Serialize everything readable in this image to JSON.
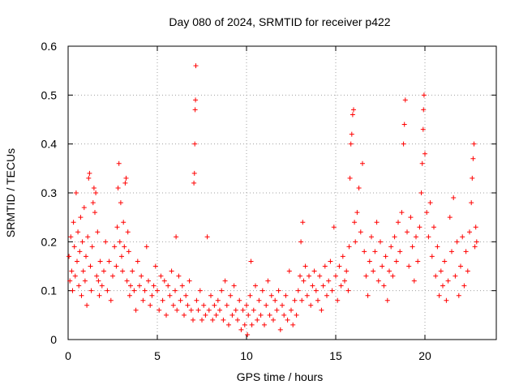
{
  "chart_data": {
    "type": "scatter",
    "title": "Day 080 of 2024, SRMTID for receiver p422",
    "xlabel": "GPS time / hours",
    "ylabel": "SRMTID / TECUs",
    "xlim": [
      0,
      24
    ],
    "ylim": [
      0,
      0.6
    ],
    "x_ticks": [
      0,
      5,
      10,
      15,
      20
    ],
    "x_tick_labels": [
      "0",
      "5",
      "10",
      "15",
      "20"
    ],
    "y_ticks": [
      0,
      0.1,
      0.2,
      0.3,
      0.4,
      0.5,
      0.6
    ],
    "y_tick_labels": [
      "0",
      "0.1",
      "0.2",
      "0.3",
      "0.4",
      "0.5",
      "0.6"
    ],
    "grid": true,
    "marker": "plus",
    "color": "#ff0000",
    "series": [
      {
        "name": "SRMTID",
        "points": [
          [
            0.05,
            0.17
          ],
          [
            0.1,
            0.12
          ],
          [
            0.15,
            0.21
          ],
          [
            0.2,
            0.14
          ],
          [
            0.25,
            0.1
          ],
          [
            0.3,
            0.24
          ],
          [
            0.35,
            0.19
          ],
          [
            0.4,
            0.13
          ],
          [
            0.45,
            0.3
          ],
          [
            0.5,
            0.16
          ],
          [
            0.55,
            0.22
          ],
          [
            0.6,
            0.11
          ],
          [
            0.65,
            0.18
          ],
          [
            0.7,
            0.25
          ],
          [
            0.75,
            0.09
          ],
          [
            0.8,
            0.2
          ],
          [
            0.85,
            0.14
          ],
          [
            0.9,
            0.27
          ],
          [
            0.95,
            0.12
          ],
          [
            1.0,
            0.17
          ],
          [
            1.05,
            0.07
          ],
          [
            1.1,
            0.21
          ],
          [
            1.15,
            0.33
          ],
          [
            1.2,
            0.34
          ],
          [
            1.25,
            0.15
          ],
          [
            1.3,
            0.1
          ],
          [
            1.35,
            0.19
          ],
          [
            1.4,
            0.28
          ],
          [
            1.45,
            0.31
          ],
          [
            1.5,
            0.26
          ],
          [
            1.55,
            0.3
          ],
          [
            1.6,
            0.13
          ],
          [
            1.65,
            0.22
          ],
          [
            1.7,
            0.12
          ],
          [
            1.75,
            0.09
          ],
          [
            1.8,
            0.16
          ],
          [
            1.9,
            0.11
          ],
          [
            2.0,
            0.14
          ],
          [
            2.1,
            0.2
          ],
          [
            2.2,
            0.1
          ],
          [
            2.3,
            0.16
          ],
          [
            2.4,
            0.08
          ],
          [
            2.5,
            0.13
          ],
          [
            2.6,
            0.19
          ],
          [
            2.7,
            0.15
          ],
          [
            2.75,
            0.23
          ],
          [
            2.8,
            0.31
          ],
          [
            2.85,
            0.36
          ],
          [
            2.9,
            0.2
          ],
          [
            2.95,
            0.28
          ],
          [
            3.0,
            0.17
          ],
          [
            3.05,
            0.14
          ],
          [
            3.1,
            0.24
          ],
          [
            3.15,
            0.19
          ],
          [
            3.2,
            0.32
          ],
          [
            3.25,
            0.33
          ],
          [
            3.3,
            0.12
          ],
          [
            3.35,
            0.22
          ],
          [
            3.4,
            0.18
          ],
          [
            3.45,
            0.09
          ],
          [
            3.5,
            0.11
          ],
          [
            3.6,
            0.14
          ],
          [
            3.7,
            0.1
          ],
          [
            3.8,
            0.06
          ],
          [
            3.9,
            0.16
          ],
          [
            4.0,
            0.11
          ],
          [
            4.1,
            0.13
          ],
          [
            4.2,
            0.08
          ],
          [
            4.3,
            0.1
          ],
          [
            4.4,
            0.19
          ],
          [
            4.5,
            0.12
          ],
          [
            4.6,
            0.07
          ],
          [
            4.7,
            0.09
          ],
          [
            4.8,
            0.11
          ],
          [
            4.9,
            0.15
          ],
          [
            5.0,
            0.1
          ],
          [
            5.1,
            0.06
          ],
          [
            5.2,
            0.13
          ],
          [
            5.3,
            0.08
          ],
          [
            5.4,
            0.12
          ],
          [
            5.5,
            0.05
          ],
          [
            5.6,
            0.11
          ],
          [
            5.7,
            0.09
          ],
          [
            5.8,
            0.14
          ],
          [
            5.9,
            0.07
          ],
          [
            6.0,
            0.1
          ],
          [
            6.05,
            0.21
          ],
          [
            6.1,
            0.06
          ],
          [
            6.2,
            0.13
          ],
          [
            6.3,
            0.08
          ],
          [
            6.4,
            0.11
          ],
          [
            6.5,
            0.05
          ],
          [
            6.6,
            0.09
          ],
          [
            6.7,
            0.07
          ],
          [
            6.8,
            0.12
          ],
          [
            6.9,
            0.06
          ],
          [
            7.0,
            0.04
          ],
          [
            7.05,
            0.32
          ],
          [
            7.08,
            0.34
          ],
          [
            7.1,
            0.4
          ],
          [
            7.12,
            0.47
          ],
          [
            7.14,
            0.49
          ],
          [
            7.16,
            0.56
          ],
          [
            7.2,
            0.08
          ],
          [
            7.3,
            0.06
          ],
          [
            7.4,
            0.1
          ],
          [
            7.5,
            0.04
          ],
          [
            7.6,
            0.07
          ],
          [
            7.7,
            0.05
          ],
          [
            7.8,
            0.21
          ],
          [
            7.9,
            0.06
          ],
          [
            8.0,
            0.09
          ],
          [
            8.1,
            0.04
          ],
          [
            8.2,
            0.07
          ],
          [
            8.3,
            0.05
          ],
          [
            8.4,
            0.08
          ],
          [
            8.5,
            0.06
          ],
          [
            8.6,
            0.1
          ],
          [
            8.7,
            0.04
          ],
          [
            8.8,
            0.12
          ],
          [
            8.9,
            0.07
          ],
          [
            9.0,
            0.03
          ],
          [
            9.1,
            0.09
          ],
          [
            9.2,
            0.05
          ],
          [
            9.3,
            0.11
          ],
          [
            9.4,
            0.06
          ],
          [
            9.5,
            0.04
          ],
          [
            9.6,
            0.08
          ],
          [
            9.7,
            0.02
          ],
          [
            9.8,
            0.06
          ],
          [
            9.9,
            0.03
          ],
          [
            10.0,
            0.07
          ],
          [
            10.05,
            0.01
          ],
          [
            10.1,
            0.05
          ],
          [
            10.2,
            0.09
          ],
          [
            10.25,
            0.16
          ],
          [
            10.3,
            0.03
          ],
          [
            10.4,
            0.06
          ],
          [
            10.5,
            0.11
          ],
          [
            10.6,
            0.04
          ],
          [
            10.7,
            0.08
          ],
          [
            10.8,
            0.05
          ],
          [
            10.9,
            0.1
          ],
          [
            11.0,
            0.03
          ],
          [
            11.1,
            0.07
          ],
          [
            11.2,
            0.12
          ],
          [
            11.3,
            0.05
          ],
          [
            11.4,
            0.09
          ],
          [
            11.5,
            0.04
          ],
          [
            11.6,
            0.08
          ],
          [
            11.7,
            0.06
          ],
          [
            11.8,
            0.1
          ],
          [
            11.9,
            0.02
          ],
          [
            12.0,
            0.07
          ],
          [
            12.1,
            0.05
          ],
          [
            12.2,
            0.09
          ],
          [
            12.3,
            0.04
          ],
          [
            12.4,
            0.14
          ],
          [
            12.5,
            0.06
          ],
          [
            12.6,
            0.03
          ],
          [
            12.7,
            0.08
          ],
          [
            12.8,
            0.05
          ],
          [
            12.9,
            0.1
          ],
          [
            13.0,
            0.13
          ],
          [
            13.05,
            0.2
          ],
          [
            13.1,
            0.08
          ],
          [
            13.15,
            0.24
          ],
          [
            13.2,
            0.12
          ],
          [
            13.3,
            0.15
          ],
          [
            13.4,
            0.09
          ],
          [
            13.5,
            0.13
          ],
          [
            13.6,
            0.07
          ],
          [
            13.7,
            0.11
          ],
          [
            13.8,
            0.14
          ],
          [
            13.9,
            0.1
          ],
          [
            14.0,
            0.08
          ],
          [
            14.1,
            0.13
          ],
          [
            14.2,
            0.06
          ],
          [
            14.3,
            0.11
          ],
          [
            14.4,
            0.15
          ],
          [
            14.5,
            0.09
          ],
          [
            14.6,
            0.12
          ],
          [
            14.7,
            0.16
          ],
          [
            14.8,
            0.1
          ],
          [
            14.9,
            0.23
          ],
          [
            15.0,
            0.13
          ],
          [
            15.1,
            0.08
          ],
          [
            15.2,
            0.15
          ],
          [
            15.3,
            0.11
          ],
          [
            15.4,
            0.17
          ],
          [
            15.5,
            0.12
          ],
          [
            15.6,
            0.14
          ],
          [
            15.7,
            0.1
          ],
          [
            15.75,
            0.19
          ],
          [
            15.8,
            0.33
          ],
          [
            15.85,
            0.4
          ],
          [
            15.9,
            0.42
          ],
          [
            15.95,
            0.46
          ],
          [
            16.0,
            0.47
          ],
          [
            16.05,
            0.24
          ],
          [
            16.1,
            0.2
          ],
          [
            16.2,
            0.26
          ],
          [
            16.3,
            0.31
          ],
          [
            16.4,
            0.22
          ],
          [
            16.5,
            0.36
          ],
          [
            16.6,
            0.18
          ],
          [
            16.7,
            0.13
          ],
          [
            16.8,
            0.09
          ],
          [
            16.9,
            0.16
          ],
          [
            17.0,
            0.21
          ],
          [
            17.1,
            0.14
          ],
          [
            17.2,
            0.18
          ],
          [
            17.3,
            0.24
          ],
          [
            17.4,
            0.12
          ],
          [
            17.5,
            0.2
          ],
          [
            17.6,
            0.15
          ],
          [
            17.7,
            0.11
          ],
          [
            17.8,
            0.17
          ],
          [
            17.9,
            0.08
          ],
          [
            18.0,
            0.14
          ],
          [
            18.1,
            0.19
          ],
          [
            18.2,
            0.13
          ],
          [
            18.3,
            0.21
          ],
          [
            18.4,
            0.16
          ],
          [
            18.5,
            0.24
          ],
          [
            18.6,
            0.18
          ],
          [
            18.7,
            0.26
          ],
          [
            18.8,
            0.4
          ],
          [
            18.85,
            0.44
          ],
          [
            18.9,
            0.49
          ],
          [
            19.0,
            0.22
          ],
          [
            19.1,
            0.15
          ],
          [
            19.2,
            0.25
          ],
          [
            19.3,
            0.19
          ],
          [
            19.4,
            0.12
          ],
          [
            19.5,
            0.21
          ],
          [
            19.6,
            0.16
          ],
          [
            19.7,
            0.23
          ],
          [
            19.8,
            0.3
          ],
          [
            19.85,
            0.36
          ],
          [
            19.9,
            0.43
          ],
          [
            19.92,
            0.47
          ],
          [
            19.95,
            0.5
          ],
          [
            20.0,
            0.38
          ],
          [
            20.1,
            0.26
          ],
          [
            20.2,
            0.21
          ],
          [
            20.3,
            0.28
          ],
          [
            20.4,
            0.17
          ],
          [
            20.5,
            0.23
          ],
          [
            20.6,
            0.13
          ],
          [
            20.7,
            0.19
          ],
          [
            20.8,
            0.09
          ],
          [
            20.9,
            0.14
          ],
          [
            21.0,
            0.11
          ],
          [
            21.1,
            0.16
          ],
          [
            21.2,
            0.08
          ],
          [
            21.3,
            0.12
          ],
          [
            21.4,
            0.25
          ],
          [
            21.5,
            0.18
          ],
          [
            21.6,
            0.29
          ],
          [
            21.7,
            0.13
          ],
          [
            21.8,
            0.2
          ],
          [
            21.9,
            0.09
          ],
          [
            22.0,
            0.15
          ],
          [
            22.1,
            0.21
          ],
          [
            22.2,
            0.11
          ],
          [
            22.3,
            0.18
          ],
          [
            22.4,
            0.14
          ],
          [
            22.5,
            0.22
          ],
          [
            22.6,
            0.28
          ],
          [
            22.65,
            0.33
          ],
          [
            22.7,
            0.37
          ],
          [
            22.75,
            0.4
          ],
          [
            22.8,
            0.19
          ],
          [
            22.85,
            0.23
          ],
          [
            22.9,
            0.2
          ]
        ]
      }
    ]
  }
}
